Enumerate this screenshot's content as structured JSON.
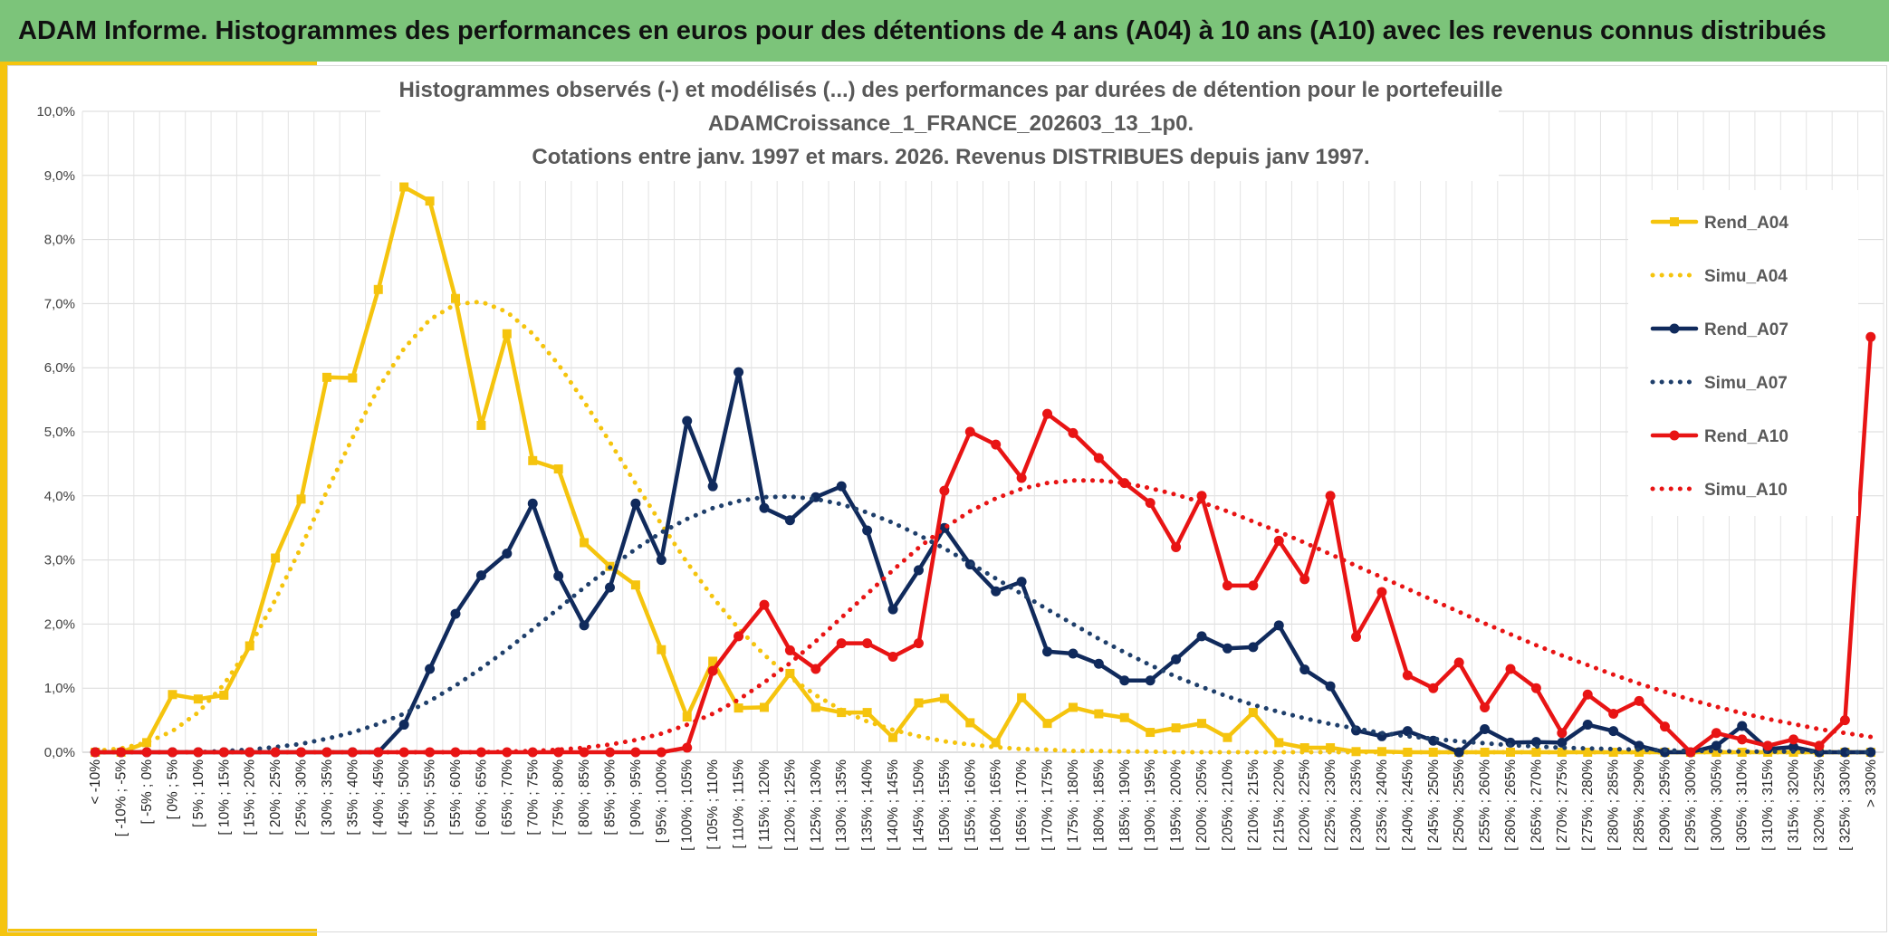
{
  "header": {
    "title": "ADAM Informe. Histogrammes des performances en euros pour des détentions de 4 ans (A04) à 10 ans (A10) avec les revenus connus distribués"
  },
  "chart_data": {
    "type": "line",
    "title_lines": [
      "Histogrammes observés (-) et modélisés (...) des performances par durées de détention pour le portefeuille",
      "ADAMCroissance_1_FRANCE_202603_13_1p0.",
      "Cotations entre janv. 1997 et mars. 2026. Revenus DISTRIBUES depuis janv 1997."
    ],
    "ylim": [
      0,
      10
    ],
    "yticks": [
      "0,0%",
      "1,0%",
      "2,0%",
      "3,0%",
      "4,0%",
      "5,0%",
      "6,0%",
      "7,0%",
      "8,0%",
      "9,0%",
      "10,0%"
    ],
    "categories": [
      "< -10%",
      "[ -10% ; -5%",
      "[ -5% ; 0%",
      "[ 0% ; 5%",
      "[ 5% ; 10%",
      "[ 10% ; 15%",
      "[ 15% ; 20%",
      "[ 20% ; 25%",
      "[ 25% ; 30%",
      "[ 30% ; 35%",
      "[ 35% ; 40%",
      "[ 40% ; 45%",
      "[ 45% ; 50%",
      "[ 50% ; 55%",
      "[ 55% ; 60%",
      "[ 60% ; 65%",
      "[ 65% ; 70%",
      "[ 70% ; 75%",
      "[ 75% ; 80%",
      "[ 80% ; 85%",
      "[ 85% ; 90%",
      "[ 90% ; 95%",
      "[ 95% ; 100%",
      "[ 100% ; 105%",
      "[ 105% ; 110%",
      "[ 110% ; 115%",
      "[ 115% ; 120%",
      "[ 120% ; 125%",
      "[ 125% ; 130%",
      "[ 130% ; 135%",
      "[ 135% ; 140%",
      "[ 140% ; 145%",
      "[ 145% ; 150%",
      "[ 150% ; 155%",
      "[ 155% ; 160%",
      "[ 160% ; 165%",
      "[ 165% ; 170%",
      "[ 170% ; 175%",
      "[ 175% ; 180%",
      "[ 180% ; 185%",
      "[ 185% ; 190%",
      "[ 190% ; 195%",
      "[ 195% ; 200%",
      "[ 200% ; 205%",
      "[ 205% ; 210%",
      "[ 210% ; 215%",
      "[ 215% ; 220%",
      "[ 220% ; 225%",
      "[ 225% ; 230%",
      "[ 230% ; 235%",
      "[ 235% ; 240%",
      "[ 240% ; 245%",
      "[ 245% ; 250%",
      "[ 250% ; 255%",
      "[ 255% ; 260%",
      "[ 260% ; 265%",
      "[ 265% ; 270%",
      "[ 270% ; 275%",
      "[ 275% ; 280%",
      "[ 280% ; 285%",
      "[ 285% ; 290%",
      "[ 290% ; 295%",
      "[ 295% ; 300%",
      "[ 300% ; 305%",
      "[ 305% ; 310%",
      "[ 310% ; 315%",
      "[ 315% ; 320%",
      "[ 320% ; 325%",
      "[ 325% ; 330%",
      "> 330%"
    ],
    "series": [
      {
        "name": "Rend_A04",
        "color": "#f5c40e",
        "style": "solid",
        "marker": "square",
        "values": [
          0,
          0,
          0.15,
          0.9,
          0.83,
          0.89,
          1.66,
          3.03,
          3.95,
          5.85,
          5.84,
          7.22,
          8.82,
          8.6,
          7.08,
          5.1,
          6.53,
          4.55,
          4.42,
          3.27,
          2.9,
          2.61,
          1.6,
          0.55,
          1.42,
          0.69,
          0.7,
          1.23,
          0.7,
          0.62,
          0.62,
          0.23,
          0.77,
          0.84,
          0.46,
          0.15,
          0.85,
          0.45,
          0.7,
          0.6,
          0.54,
          0.31,
          0.38,
          0.45,
          0.23,
          0.62,
          0.15,
          0.07,
          0.07,
          0.01,
          0.01,
          0,
          0,
          0,
          0,
          0,
          0,
          0,
          0,
          0,
          0,
          0,
          0,
          0,
          0,
          0,
          0,
          0,
          0,
          0
        ]
      },
      {
        "name": "Simu_A04",
        "color": "#f5c40e",
        "style": "dotted",
        "marker": "none",
        "values": [
          0.02,
          0.06,
          0.15,
          0.33,
          0.62,
          1.06,
          1.65,
          2.38,
          3.2,
          4.07,
          4.91,
          5.68,
          6.3,
          6.75,
          6.99,
          7.03,
          6.87,
          6.53,
          6.05,
          5.47,
          4.84,
          4.19,
          3.56,
          2.96,
          2.42,
          1.93,
          1.52,
          1.17,
          0.89,
          0.66,
          0.48,
          0.35,
          0.25,
          0.17,
          0.12,
          0.08,
          0.05,
          0.04,
          0.02,
          0.02,
          0.01,
          0.01,
          0,
          0,
          0,
          0,
          0,
          0,
          0,
          0,
          0,
          0,
          0,
          0,
          0,
          0,
          0,
          0,
          0,
          0,
          0,
          0,
          0,
          0,
          0,
          0,
          0,
          0,
          0,
          0
        ]
      },
      {
        "name": "Rend_A07",
        "color": "#102a5c",
        "style": "solid",
        "marker": "circle",
        "values": [
          0,
          0,
          0,
          0,
          0,
          0,
          0,
          0,
          0,
          0,
          0,
          0,
          0.43,
          1.3,
          2.16,
          2.76,
          3.1,
          3.88,
          2.75,
          1.98,
          2.57,
          3.88,
          3.0,
          5.17,
          4.15,
          5.93,
          3.81,
          3.62,
          3.98,
          4.15,
          3.46,
          2.23,
          2.84,
          3.5,
          2.93,
          2.51,
          2.66,
          1.57,
          1.54,
          1.38,
          1.12,
          1.12,
          1.45,
          1.81,
          1.62,
          1.64,
          1.98,
          1.29,
          1.03,
          0.34,
          0.25,
          0.33,
          0.18,
          0,
          0.36,
          0.15,
          0.16,
          0.15,
          0.43,
          0.33,
          0.1,
          0,
          0,
          0.1,
          0.41,
          0.05,
          0.08,
          0,
          0,
          0
        ]
      },
      {
        "name": "Simu_A07",
        "color": "#1f3f6b",
        "style": "dotted",
        "marker": "none",
        "values": [
          0,
          0,
          0,
          0,
          0,
          0.02,
          0.04,
          0.08,
          0.13,
          0.21,
          0.31,
          0.44,
          0.6,
          0.8,
          1.04,
          1.31,
          1.6,
          1.92,
          2.24,
          2.57,
          2.88,
          3.17,
          3.43,
          3.64,
          3.81,
          3.92,
          3.98,
          3.99,
          3.95,
          3.87,
          3.74,
          3.58,
          3.39,
          3.18,
          2.95,
          2.71,
          2.47,
          2.23,
          2.0,
          1.77,
          1.56,
          1.36,
          1.18,
          1.02,
          0.87,
          0.74,
          0.63,
          0.53,
          0.44,
          0.37,
          0.3,
          0.25,
          0.21,
          0.17,
          0.14,
          0.11,
          0.09,
          0.07,
          0.06,
          0.05,
          0.04,
          0.03,
          0.02,
          0.02,
          0.01,
          0.01,
          0.01,
          0.01,
          0,
          0
        ]
      },
      {
        "name": "Rend_A10",
        "color": "#e81414",
        "style": "solid",
        "marker": "circle",
        "values": [
          0,
          0,
          0,
          0,
          0,
          0,
          0,
          0,
          0,
          0,
          0,
          0,
          0,
          0,
          0,
          0,
          0,
          0,
          0,
          0,
          0,
          0,
          0,
          0.07,
          1.27,
          1.81,
          2.3,
          1.59,
          1.3,
          1.7,
          1.7,
          1.49,
          1.7,
          4.08,
          5.0,
          4.8,
          4.28,
          5.28,
          4.98,
          4.59,
          4.2,
          3.89,
          3.2,
          4.0,
          2.6,
          2.6,
          3.3,
          2.7,
          4.0,
          1.8,
          2.5,
          1.2,
          1.0,
          1.4,
          0.7,
          1.3,
          1.0,
          0.3,
          0.9,
          0.6,
          0.8,
          0.4,
          0,
          0.3,
          0.2,
          0.1,
          0.2,
          0.1,
          0.5,
          6.48
        ]
      },
      {
        "name": "Simu_A10",
        "color": "#e81414",
        "style": "dotted",
        "marker": "none",
        "values": [
          0,
          0,
          0,
          0,
          0,
          0,
          0,
          0,
          0,
          0,
          0,
          0,
          0,
          0,
          0,
          0,
          0.01,
          0.02,
          0.04,
          0.07,
          0.12,
          0.19,
          0.29,
          0.43,
          0.6,
          0.82,
          1.09,
          1.39,
          1.73,
          2.1,
          2.47,
          2.84,
          3.19,
          3.5,
          3.76,
          3.96,
          4.11,
          4.2,
          4.24,
          4.24,
          4.2,
          4.12,
          4.02,
          3.9,
          3.76,
          3.6,
          3.44,
          3.27,
          3.09,
          2.91,
          2.73,
          2.55,
          2.37,
          2.19,
          2.01,
          1.84,
          1.67,
          1.51,
          1.36,
          1.21,
          1.07,
          0.94,
          0.82,
          0.71,
          0.61,
          0.52,
          0.44,
          0.36,
          0.3,
          0.24
        ]
      }
    ],
    "legend": {
      "placement": "right",
      "entries": [
        "Rend_A04",
        "Simu_A04",
        "Rend_A07",
        "Simu_A07",
        "Rend_A10",
        "Simu_A10"
      ]
    },
    "xlabel": "",
    "ylabel": "",
    "grid": true
  }
}
